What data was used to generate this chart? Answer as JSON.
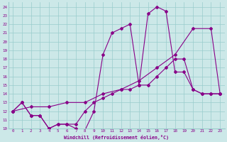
{
  "background_color": "#cce8e8",
  "line_color": "#880088",
  "xlabel": "Windchill (Refroidissement éolien,°C)",
  "xlim": [
    -0.5,
    23.5
  ],
  "ylim": [
    10,
    24.5
  ],
  "yticks": [
    10,
    11,
    12,
    13,
    14,
    15,
    16,
    17,
    18,
    19,
    20,
    21,
    22,
    23,
    24
  ],
  "xticks": [
    0,
    1,
    2,
    3,
    4,
    5,
    6,
    7,
    8,
    9,
    10,
    11,
    12,
    13,
    14,
    15,
    16,
    17,
    18,
    19,
    20,
    21,
    22,
    23
  ],
  "grid_color": "#99cccc",
  "line1_x": [
    0,
    1,
    2,
    3,
    4,
    5,
    6,
    7,
    8,
    9,
    10,
    11,
    12,
    13,
    14,
    15,
    16,
    17,
    18,
    19,
    20,
    21,
    22,
    23
  ],
  "line1_y": [
    12,
    13,
    11.5,
    11.5,
    10,
    10.5,
    10.5,
    10,
    9.8,
    12,
    18.5,
    21,
    21.5,
    22,
    15,
    23.2,
    24,
    23.5,
    16.5,
    16.5,
    14.5,
    14,
    14,
    14
  ],
  "line2_x": [
    0,
    2,
    4,
    6,
    8,
    10,
    12,
    14,
    16,
    18,
    20,
    22,
    23
  ],
  "line2_y": [
    12,
    12.5,
    12.5,
    13,
    13,
    14,
    14.5,
    15.5,
    17,
    18.5,
    21.5,
    21.5,
    14
  ],
  "line3_x": [
    0,
    1,
    2,
    3,
    4,
    5,
    6,
    7,
    8,
    9,
    10,
    11,
    12,
    13,
    14,
    15,
    16,
    17,
    18,
    19,
    20,
    21,
    22,
    23
  ],
  "line3_y": [
    12,
    13,
    11.5,
    11.5,
    10,
    10.5,
    10.5,
    10.5,
    12,
    13,
    13.5,
    14,
    14.5,
    14.5,
    15,
    15,
    16,
    17,
    18,
    18,
    14.5,
    14,
    14,
    14
  ]
}
